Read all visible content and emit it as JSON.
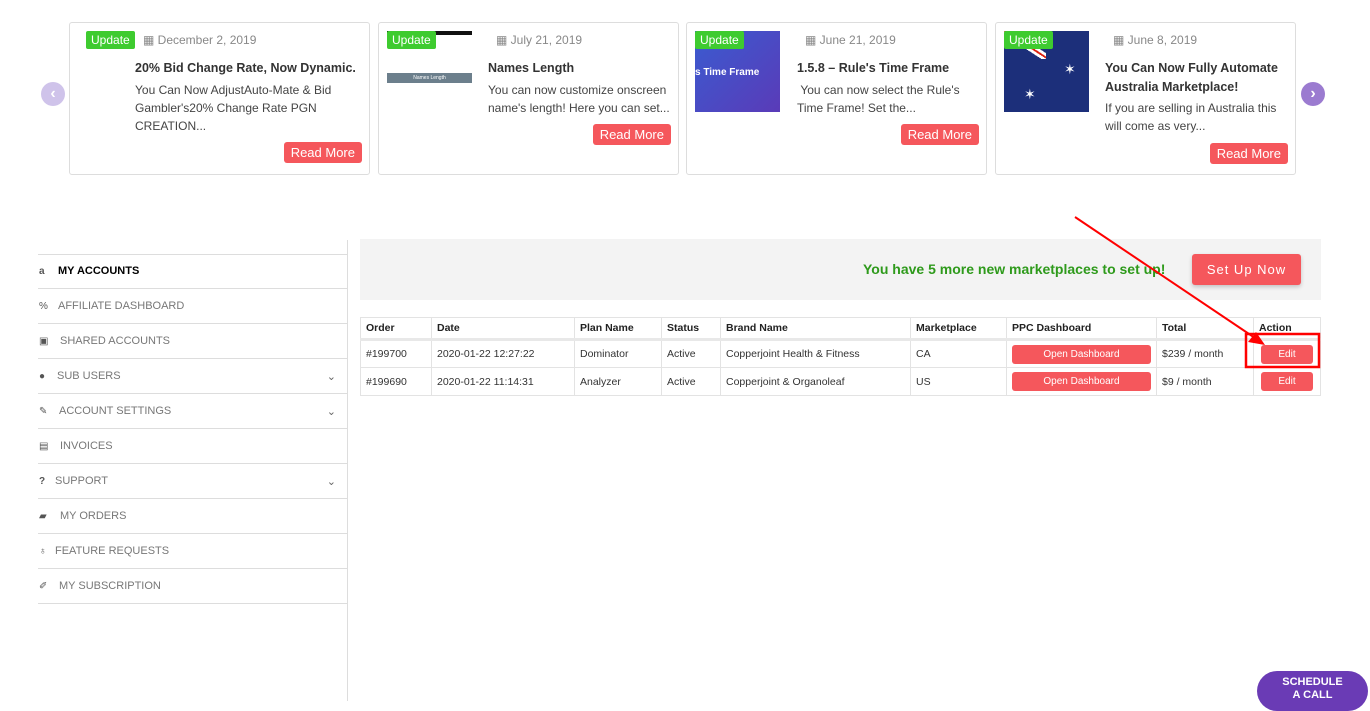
{
  "carousel": {
    "cards": [
      {
        "badge": "Update",
        "date": "December 2, 2019",
        "title": "20% Bid Change Rate, Now Dynamic.",
        "desc": "You Can Now AdjustAuto-Mate & Bid Gambler's20% Change Rate PGN CREATION...",
        "button": "Read More"
      },
      {
        "badge": "Update",
        "date": "July 21, 2019",
        "title": "Names Length",
        "desc": "You can now customize onscreen name's length! Here you can set...",
        "button": "Read More",
        "thumb_text": "Names Length"
      },
      {
        "badge": "Update",
        "date": "June 21, 2019",
        "title": "1.5.8 – Rule's Time Frame",
        "desc": " You can now select the Rule's Time Frame! Set the...",
        "button": "Read More",
        "thumb_text": "s Time Frame"
      },
      {
        "badge": "Update",
        "date": "June 8, 2019",
        "title": "You Can Now Fully Automate Australia Marketplace!",
        "desc": "If you are selling in Australia this will come as very...",
        "button": "Read More"
      }
    ],
    "prev_icon": "chevron-left-icon",
    "next_icon": "chevron-right-icon"
  },
  "sidebar": {
    "items": [
      {
        "label": "MY ACCOUNTS",
        "icon": "amazon-icon",
        "active": true
      },
      {
        "label": "AFFILIATE DASHBOARD",
        "icon": "percent-icon"
      },
      {
        "label": "SHARED ACCOUNTS",
        "icon": "shared-icon"
      },
      {
        "label": "SUB USERS",
        "icon": "user-icon",
        "expandable": true
      },
      {
        "label": "ACCOUNT SETTINGS",
        "icon": "edit-icon",
        "expandable": true
      },
      {
        "label": "INVOICES",
        "icon": "invoice-icon"
      },
      {
        "label": "SUPPORT",
        "icon": "question-icon",
        "expandable": true
      },
      {
        "label": "MY ORDERS",
        "icon": "folder-icon"
      },
      {
        "label": "FEATURE REQUESTS",
        "icon": "lightbulb-icon"
      },
      {
        "label": "MY SUBSCRIPTION",
        "icon": "pencil-icon"
      }
    ]
  },
  "banner": {
    "text": "You have 5 more new marketplaces to set up!",
    "button": "Set Up Now"
  },
  "table": {
    "headers": [
      "Order",
      "Date",
      "Plan Name",
      "Status",
      "Brand Name",
      "Marketplace",
      "PPC Dashboard",
      "Total",
      "Action"
    ],
    "rows": [
      {
        "order": "#199700",
        "date": "2020-01-22 12:27:22",
        "plan": "Dominator",
        "status": "Active",
        "brand": "Copperjoint Health & Fitness",
        "marketplace": "CA",
        "ppc": "Open Dashboard",
        "total": "$239 / month",
        "action": "Edit"
      },
      {
        "order": "#199690",
        "date": "2020-01-22 11:14:31",
        "plan": "Analyzer",
        "status": "Active",
        "brand": "Copperjoint & Organoleaf",
        "marketplace": "US",
        "ppc": "Open Dashboard",
        "total": "$9 / month",
        "action": "Edit"
      }
    ]
  },
  "schedule": {
    "line1": "SCHEDULE",
    "line2": "A CALL"
  },
  "colors": {
    "accent": "#f5575c",
    "badge": "#3ecb2f",
    "purple": "#6a3bb5",
    "banner_text": "#2e9a1b",
    "annotation": "#ff0000"
  }
}
